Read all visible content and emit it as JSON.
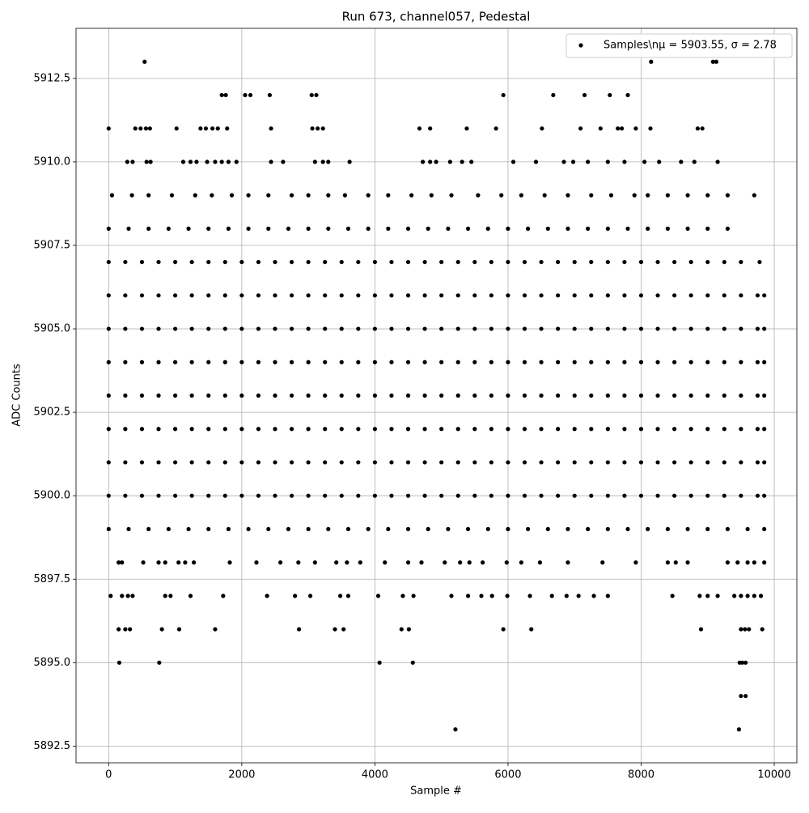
{
  "chart_data": {
    "type": "scatter",
    "title": "Run 673, channel057, Pedestal",
    "x_label": "Sample #",
    "y_label": "ADC Counts",
    "xlim": [
      -490,
      10340
    ],
    "ylim": [
      5892,
      5914
    ],
    "xticks": [
      0,
      2000,
      4000,
      6000,
      8000,
      10000
    ],
    "yticks": [
      5892.5,
      {
        "value": 5895,
        "label": "5895.0"
      },
      5897.5,
      {
        "value": 5900,
        "label": "5900.0"
      },
      5902.5,
      {
        "value": 5905,
        "label": "5905.0"
      },
      5907.5,
      {
        "value": 5910,
        "label": "5910.0"
      },
      5912.5
    ],
    "grid": true,
    "legend": "upper right",
    "x": [
      540,
      8150,
      9080,
      9130,
      1700,
      1760,
      2050,
      2130,
      2420,
      3050,
      3120,
      5930,
      6680,
      7150,
      7530,
      7800,
      0,
      400,
      480,
      560,
      620,
      1020,
      1380,
      1460,
      1560,
      1640,
      1780,
      2440,
      3060,
      3140,
      3220,
      4670,
      4830,
      5380,
      5820,
      6510,
      7090,
      7390,
      7650,
      7710,
      7920,
      8140,
      8850,
      8920,
      280,
      360,
      570,
      630,
      1120,
      1230,
      1320,
      1480,
      1600,
      1700,
      1800,
      1920,
      2440,
      2620,
      3100,
      3220,
      3300,
      3620,
      4720,
      4830,
      4920,
      5130,
      5310,
      5450,
      6080,
      6420,
      6840,
      6980,
      7200,
      7500,
      7750,
      8050,
      8270,
      8600,
      8800,
      9150,
      50,
      350,
      600,
      950,
      1300,
      1550,
      1850,
      2100,
      2400,
      2750,
      3000,
      3300,
      3550,
      3900,
      4200,
      4550,
      4850,
      5150,
      5550,
      5900,
      6200,
      6550,
      6900,
      7250,
      7550,
      7900,
      8100,
      8400,
      8700,
      9000,
      9300,
      9700,
      0,
      300,
      600,
      900,
      1200,
      1500,
      1800,
      2100,
      2400,
      2700,
      3000,
      3300,
      3600,
      3900,
      4200,
      4500,
      4800,
      5100,
      5400,
      5700,
      6000,
      6300,
      6600,
      6900,
      7200,
      7500,
      7800,
      8100,
      8400,
      8700,
      9000,
      9300,
      0,
      250,
      500,
      750,
      1000,
      1250,
      1500,
      1750,
      2000,
      2250,
      2500,
      2750,
      3000,
      3250,
      3500,
      3750,
      4000,
      4250,
      4500,
      4750,
      5000,
      5250,
      5500,
      5750,
      6000,
      6250,
      6500,
      6750,
      7000,
      7250,
      7500,
      7750,
      8000,
      8250,
      8500,
      8750,
      9000,
      9250,
      9500,
      9780,
      0,
      250,
      500,
      750,
      1000,
      1250,
      1500,
      1750,
      2000,
      2250,
      2500,
      2750,
      3000,
      3250,
      3500,
      3750,
      4000,
      4250,
      4500,
      4750,
      5000,
      5250,
      5500,
      5750,
      6000,
      6250,
      6500,
      6750,
      7000,
      7250,
      7500,
      7750,
      8000,
      8250,
      8500,
      8750,
      9000,
      9250,
      9500,
      9750,
      9850,
      0,
      250,
      500,
      750,
      1000,
      1250,
      1500,
      1750,
      2000,
      2250,
      2500,
      2750,
      3000,
      3250,
      3500,
      3750,
      4000,
      4250,
      4500,
      4750,
      5000,
      5250,
      5500,
      5750,
      6000,
      6250,
      6500,
      6750,
      7000,
      7250,
      7500,
      7750,
      8000,
      8250,
      8500,
      8750,
      9000,
      9250,
      9500,
      9750,
      9850,
      0,
      250,
      500,
      750,
      1000,
      1250,
      1500,
      1750,
      2000,
      2250,
      2500,
      2750,
      3000,
      3250,
      3500,
      3750,
      4000,
      4250,
      4500,
      4750,
      5000,
      5250,
      5500,
      5750,
      6000,
      6250,
      6500,
      6750,
      7000,
      7250,
      7500,
      7750,
      8000,
      8250,
      8500,
      8750,
      9000,
      9250,
      9500,
      9750,
      9850,
      0,
      250,
      500,
      750,
      1000,
      1250,
      1500,
      1750,
      2000,
      2250,
      2500,
      2750,
      3000,
      3250,
      3500,
      3750,
      4000,
      4250,
      4500,
      4750,
      5000,
      5250,
      5500,
      5750,
      6000,
      6250,
      6500,
      6750,
      7000,
      7250,
      7500,
      7750,
      8000,
      8250,
      8500,
      8750,
      9000,
      9250,
      9500,
      9750,
      9850,
      0,
      250,
      500,
      750,
      1000,
      1250,
      1500,
      1750,
      2000,
      2250,
      2500,
      2750,
      3000,
      3250,
      3500,
      3750,
      4000,
      4250,
      4500,
      4750,
      5000,
      5250,
      5500,
      5750,
      6000,
      6250,
      6500,
      6750,
      7000,
      7250,
      7500,
      7750,
      8000,
      8250,
      8500,
      8750,
      9000,
      9250,
      9500,
      9750,
      9850,
      0,
      250,
      500,
      750,
      1000,
      1250,
      1500,
      1750,
      2000,
      2250,
      2500,
      2750,
      3000,
      3250,
      3500,
      3750,
      4000,
      4250,
      4500,
      4750,
      5000,
      5250,
      5500,
      5750,
      6000,
      6250,
      6500,
      6750,
      7000,
      7250,
      7500,
      7750,
      8000,
      8250,
      8500,
      8750,
      9000,
      9250,
      9500,
      9750,
      9850,
      0,
      250,
      500,
      750,
      1000,
      1250,
      1500,
      1750,
      2000,
      2250,
      2500,
      2750,
      3000,
      3250,
      3500,
      3750,
      4000,
      4250,
      4500,
      4750,
      5000,
      5250,
      5500,
      5750,
      6000,
      6250,
      6500,
      6750,
      7000,
      7250,
      7500,
      7750,
      8000,
      8250,
      8500,
      8750,
      9000,
      9250,
      9500,
      9750,
      9850,
      0,
      300,
      600,
      900,
      1200,
      1500,
      1800,
      2100,
      2400,
      2700,
      3000,
      3300,
      3600,
      3900,
      4200,
      4500,
      4800,
      5100,
      5400,
      5700,
      6000,
      6300,
      6600,
      6900,
      7200,
      7500,
      7800,
      8100,
      8400,
      8700,
      9000,
      9300,
      9600,
      9850,
      150,
      200,
      520,
      750,
      850,
      1050,
      1150,
      1280,
      1820,
      2220,
      2580,
      2850,
      3100,
      3420,
      3580,
      3780,
      4150,
      4500,
      4700,
      5050,
      5280,
      5420,
      5620,
      5980,
      6200,
      6480,
      6900,
      7420,
      7920,
      8400,
      8520,
      8700,
      9300,
      9450,
      9600,
      9700,
      9850,
      30,
      200,
      290,
      360,
      850,
      930,
      1230,
      1720,
      2380,
      2800,
      3030,
      3480,
      3600,
      4050,
      4420,
      4580,
      5150,
      5400,
      5600,
      5760,
      5990,
      6330,
      6660,
      6880,
      7060,
      7290,
      7500,
      8470,
      8880,
      9000,
      9150,
      9400,
      9500,
      9600,
      9700,
      9800,
      150,
      250,
      320,
      800,
      1060,
      1600,
      2860,
      3400,
      3530,
      4400,
      4510,
      5930,
      6350,
      8900,
      9500,
      9560,
      9620,
      9820,
      160,
      760,
      4070,
      4570,
      9480,
      9520,
      9570,
      9500,
      9570,
      5210,
      9470
    ],
    "series": [
      {
        "name": "Samples\\nμ = 5903.55, σ = 2.78",
        "color": "#000000",
        "values": [
          5913,
          5913,
          5913,
          5913,
          5912,
          5912,
          5912,
          5912,
          5912,
          5912,
          5912,
          5912,
          5912,
          5912,
          5912,
          5912,
          5911,
          5911,
          5911,
          5911,
          5911,
          5911,
          5911,
          5911,
          5911,
          5911,
          5911,
          5911,
          5911,
          5911,
          5911,
          5911,
          5911,
          5911,
          5911,
          5911,
          5911,
          5911,
          5911,
          5911,
          5911,
          5911,
          5911,
          5911,
          5910,
          5910,
          5910,
          5910,
          5910,
          5910,
          5910,
          5910,
          5910,
          5910,
          5910,
          5910,
          5910,
          5910,
          5910,
          5910,
          5910,
          5910,
          5910,
          5910,
          5910,
          5910,
          5910,
          5910,
          5910,
          5910,
          5910,
          5910,
          5910,
          5910,
          5910,
          5910,
          5910,
          5910,
          5910,
          5910,
          5909,
          5909,
          5909,
          5909,
          5909,
          5909,
          5909,
          5909,
          5909,
          5909,
          5909,
          5909,
          5909,
          5909,
          5909,
          5909,
          5909,
          5909,
          5909,
          5909,
          5909,
          5909,
          5909,
          5909,
          5909,
          5909,
          5909,
          5909,
          5909,
          5909,
          5909,
          5909,
          5908,
          5908,
          5908,
          5908,
          5908,
          5908,
          5908,
          5908,
          5908,
          5908,
          5908,
          5908,
          5908,
          5908,
          5908,
          5908,
          5908,
          5908,
          5908,
          5908,
          5908,
          5908,
          5908,
          5908,
          5908,
          5908,
          5908,
          5908,
          5908,
          5908,
          5908,
          5908,
          5907,
          5907,
          5907,
          5907,
          5907,
          5907,
          5907,
          5907,
          5907,
          5907,
          5907,
          5907,
          5907,
          5907,
          5907,
          5907,
          5907,
          5907,
          5907,
          5907,
          5907,
          5907,
          5907,
          5907,
          5907,
          5907,
          5907,
          5907,
          5907,
          5907,
          5907,
          5907,
          5907,
          5907,
          5907,
          5907,
          5907,
          5907,
          5907,
          5907,
          5906,
          5906,
          5906,
          5906,
          5906,
          5906,
          5906,
          5906,
          5906,
          5906,
          5906,
          5906,
          5906,
          5906,
          5906,
          5906,
          5906,
          5906,
          5906,
          5906,
          5906,
          5906,
          5906,
          5906,
          5906,
          5906,
          5906,
          5906,
          5906,
          5906,
          5906,
          5906,
          5906,
          5906,
          5906,
          5906,
          5906,
          5906,
          5906,
          5906,
          5906,
          5905,
          5905,
          5905,
          5905,
          5905,
          5905,
          5905,
          5905,
          5905,
          5905,
          5905,
          5905,
          5905,
          5905,
          5905,
          5905,
          5905,
          5905,
          5905,
          5905,
          5905,
          5905,
          5905,
          5905,
          5905,
          5905,
          5905,
          5905,
          5905,
          5905,
          5905,
          5905,
          5905,
          5905,
          5905,
          5905,
          5905,
          5905,
          5905,
          5905,
          5905,
          5904,
          5904,
          5904,
          5904,
          5904,
          5904,
          5904,
          5904,
          5904,
          5904,
          5904,
          5904,
          5904,
          5904,
          5904,
          5904,
          5904,
          5904,
          5904,
          5904,
          5904,
          5904,
          5904,
          5904,
          5904,
          5904,
          5904,
          5904,
          5904,
          5904,
          5904,
          5904,
          5904,
          5904,
          5904,
          5904,
          5904,
          5904,
          5904,
          5904,
          5904,
          5903,
          5903,
          5903,
          5903,
          5903,
          5903,
          5903,
          5903,
          5903,
          5903,
          5903,
          5903,
          5903,
          5903,
          5903,
          5903,
          5903,
          5903,
          5903,
          5903,
          5903,
          5903,
          5903,
          5903,
          5903,
          5903,
          5903,
          5903,
          5903,
          5903,
          5903,
          5903,
          5903,
          5903,
          5903,
          5903,
          5903,
          5903,
          5903,
          5903,
          5903,
          5902,
          5902,
          5902,
          5902,
          5902,
          5902,
          5902,
          5902,
          5902,
          5902,
          5902,
          5902,
          5902,
          5902,
          5902,
          5902,
          5902,
          5902,
          5902,
          5902,
          5902,
          5902,
          5902,
          5902,
          5902,
          5902,
          5902,
          5902,
          5902,
          5902,
          5902,
          5902,
          5902,
          5902,
          5902,
          5902,
          5902,
          5902,
          5902,
          5902,
          5902,
          5901,
          5901,
          5901,
          5901,
          5901,
          5901,
          5901,
          5901,
          5901,
          5901,
          5901,
          5901,
          5901,
          5901,
          5901,
          5901,
          5901,
          5901,
          5901,
          5901,
          5901,
          5901,
          5901,
          5901,
          5901,
          5901,
          5901,
          5901,
          5901,
          5901,
          5901,
          5901,
          5901,
          5901,
          5901,
          5901,
          5901,
          5901,
          5901,
          5901,
          5901,
          5900,
          5900,
          5900,
          5900,
          5900,
          5900,
          5900,
          5900,
          5900,
          5900,
          5900,
          5900,
          5900,
          5900,
          5900,
          5900,
          5900,
          5900,
          5900,
          5900,
          5900,
          5900,
          5900,
          5900,
          5900,
          5900,
          5900,
          5900,
          5900,
          5900,
          5900,
          5900,
          5900,
          5900,
          5900,
          5900,
          5900,
          5900,
          5900,
          5900,
          5900,
          5899,
          5899,
          5899,
          5899,
          5899,
          5899,
          5899,
          5899,
          5899,
          5899,
          5899,
          5899,
          5899,
          5899,
          5899,
          5899,
          5899,
          5899,
          5899,
          5899,
          5899,
          5899,
          5899,
          5899,
          5899,
          5899,
          5899,
          5899,
          5899,
          5899,
          5899,
          5899,
          5899,
          5899,
          5898,
          5898,
          5898,
          5898,
          5898,
          5898,
          5898,
          5898,
          5898,
          5898,
          5898,
          5898,
          5898,
          5898,
          5898,
          5898,
          5898,
          5898,
          5898,
          5898,
          5898,
          5898,
          5898,
          5898,
          5898,
          5898,
          5898,
          5898,
          5898,
          5898,
          5898,
          5898,
          5898,
          5898,
          5898,
          5898,
          5898,
          5897,
          5897,
          5897,
          5897,
          5897,
          5897,
          5897,
          5897,
          5897,
          5897,
          5897,
          5897,
          5897,
          5897,
          5897,
          5897,
          5897,
          5897,
          5897,
          5897,
          5897,
          5897,
          5897,
          5897,
          5897,
          5897,
          5897,
          5897,
          5897,
          5897,
          5897,
          5897,
          5897,
          5897,
          5897,
          5897,
          5896,
          5896,
          5896,
          5896,
          5896,
          5896,
          5896,
          5896,
          5896,
          5896,
          5896,
          5896,
          5896,
          5896,
          5896,
          5896,
          5896,
          5896,
          5895,
          5895,
          5895,
          5895,
          5895,
          5895,
          5895,
          5894,
          5894,
          5893,
          5893
        ]
      }
    ]
  }
}
